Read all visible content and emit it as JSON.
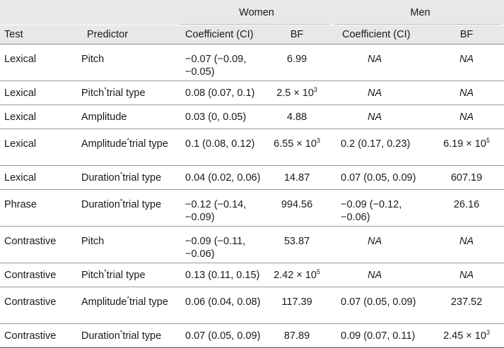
{
  "header": {
    "women": "Women",
    "men": "Men",
    "test": "Test",
    "predictor": "Predictor",
    "w_coef": "Coefficient (CI)",
    "w_bf": "BF",
    "m_coef": "Coefficient (CI)",
    "m_bf": "BF"
  },
  "rows": [
    {
      "test": "Lexical",
      "pred_a": "Pitch",
      "pred_b": "",
      "w_coef": "−0.07 (−0.09, −0.05)",
      "w_bf": "6.99",
      "w_bf_exp": "",
      "m_coef": "NA",
      "m_bf": "NA",
      "m_bf_exp": ""
    },
    {
      "test": "Lexical",
      "pred_a": "Pitch",
      "pred_b": "trial type",
      "w_coef": "0.08 (0.07, 0.1)",
      "w_bf": "2.5 × 10",
      "w_bf_exp": "3",
      "m_coef": "NA",
      "m_bf": "NA",
      "m_bf_exp": ""
    },
    {
      "test": "Lexical",
      "pred_a": "Amplitude",
      "pred_b": "",
      "w_coef": "0.03 (0, 0.05)",
      "w_bf": "4.88",
      "w_bf_exp": "",
      "m_coef": "NA",
      "m_bf": "NA",
      "m_bf_exp": ""
    },
    {
      "test": "Lexical",
      "pred_a": "Amplitude",
      "pred_b": "trial type",
      "w_coef": "0.1 (0.08, 0.12)",
      "w_bf": "6.55 × 10",
      "w_bf_exp": "3",
      "m_coef": "0.2 (0.17, 0.23)",
      "m_bf": "6.19 × 10",
      "m_bf_exp": "5"
    },
    {
      "test": "Lexical",
      "pred_a": "Duration",
      "pred_b": "trial type",
      "w_coef": "0.04 (0.02, 0.06)",
      "w_bf": "14.87",
      "w_bf_exp": "",
      "m_coef": "0.07 (0.05, 0.09)",
      "m_bf": "607.19",
      "m_bf_exp": ""
    },
    {
      "test": "Phrase",
      "pred_a": "Duration",
      "pred_b": "trial type",
      "w_coef": "−0.12 (−0.14, −0.09)",
      "w_bf": "994.56",
      "w_bf_exp": "",
      "m_coef": "−0.09 (−0.12, −0.06)",
      "m_bf": "26.16",
      "m_bf_exp": ""
    },
    {
      "test": "Contrastive",
      "pred_a": "Pitch",
      "pred_b": "",
      "w_coef": "−0.09 (−0.11, −0.06)",
      "w_bf": "53.87",
      "w_bf_exp": "",
      "m_coef": "NA",
      "m_bf": "NA",
      "m_bf_exp": ""
    },
    {
      "test": "Contrastive",
      "pred_a": "Pitch",
      "pred_b": "trial type",
      "w_coef": "0.13 (0.11, 0.15)",
      "w_bf": "2.42 × 10",
      "w_bf_exp": "5",
      "m_coef": "NA",
      "m_bf": "NA",
      "m_bf_exp": ""
    },
    {
      "test": "Contrastive",
      "pred_a": "Amplitude",
      "pred_b": "trial type",
      "w_coef": "0.06 (0.04, 0.08)",
      "w_bf": "117.39",
      "w_bf_exp": "",
      "m_coef": "0.07 (0.05, 0.09)",
      "m_bf": "237.52",
      "m_bf_exp": ""
    },
    {
      "test": "Contrastive",
      "pred_a": "Duration",
      "pred_b": "trial type",
      "w_coef": "0.07 (0.05, 0.09)",
      "w_bf": "87.89",
      "w_bf_exp": "",
      "m_coef": "0.09 (0.07, 0.11)",
      "m_bf": "2.45 × 10",
      "m_bf_exp": "3"
    }
  ],
  "styles": {
    "header_bg": "#e8e8e8",
    "rule_color": "#999999"
  }
}
